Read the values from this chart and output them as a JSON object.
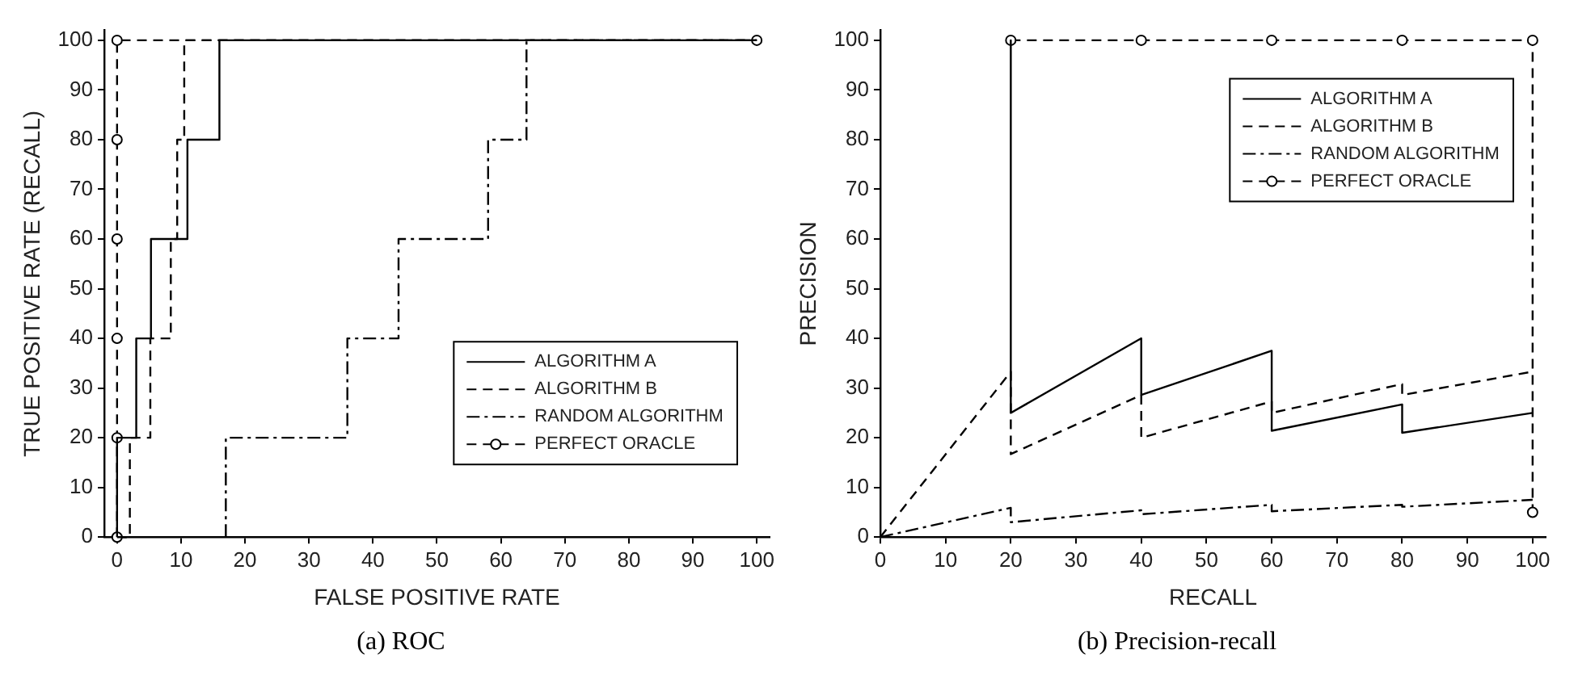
{
  "chart_data": [
    {
      "type": "line",
      "xlabel": "FALSE POSITIVE RATE",
      "ylabel": "TRUE POSITIVE RATE (RECALL)",
      "annotations": [
        "(a) ROC"
      ],
      "xlim": [
        -2,
        102
      ],
      "ylim": [
        0,
        102
      ],
      "xticks": [
        0,
        10,
        20,
        30,
        40,
        50,
        60,
        70,
        80,
        90,
        100
      ],
      "yticks": [
        0,
        10,
        20,
        30,
        40,
        50,
        60,
        70,
        80,
        90,
        100
      ],
      "grid": false,
      "legend": "bottom right",
      "series": [
        {
          "name": "ALGORITHM A",
          "color": "#000000",
          "line_style": "solid",
          "marker": "none",
          "x": [
            0,
            0,
            3,
            3,
            5.3,
            5.3,
            11,
            11,
            16,
            16,
            100
          ],
          "values": [
            0,
            20,
            20,
            40,
            40,
            60,
            60,
            80,
            80,
            100,
            100
          ]
        },
        {
          "name": "ALGORITHM B",
          "color": "#000000",
          "line_style": "dashed",
          "marker": "none",
          "x": [
            0,
            2,
            2,
            5.2,
            5.2,
            8.4,
            8.4,
            9.4,
            9.4,
            10.5,
            10.5,
            100
          ],
          "values": [
            0,
            0,
            20,
            20,
            40,
            40,
            60,
            60,
            80,
            80,
            100,
            100
          ]
        },
        {
          "name": "RANDOM ALGORITHM",
          "color": "#000000",
          "line_style": "dashdot",
          "marker": "none",
          "x": [
            17,
            17,
            36,
            36,
            44,
            44,
            58,
            58,
            64,
            64,
            100
          ],
          "values": [
            0,
            20,
            20,
            40,
            40,
            60,
            60,
            80,
            80,
            100,
            100
          ]
        },
        {
          "name": "PERFECT ORACLE",
          "color": "#000000",
          "line_style": "dashed",
          "marker": "circle",
          "x": [
            0,
            0,
            0,
            0,
            0,
            0,
            100
          ],
          "values": [
            0,
            20,
            40,
            60,
            80,
            100,
            100
          ]
        }
      ]
    },
    {
      "type": "line",
      "xlabel": "RECALL",
      "ylabel": "PRECISION",
      "annotations": [
        "(b) Precision-recall"
      ],
      "xlim": [
        0,
        102
      ],
      "ylim": [
        0,
        102
      ],
      "xticks": [
        0,
        10,
        20,
        30,
        40,
        50,
        60,
        70,
        80,
        90,
        100
      ],
      "yticks": [
        0,
        10,
        20,
        30,
        40,
        50,
        60,
        70,
        80,
        90,
        100
      ],
      "grid": false,
      "legend": "top right",
      "series": [
        {
          "name": "ALGORITHM A",
          "color": "#000000",
          "line_style": "solid",
          "marker": "none",
          "x": [
            20,
            20,
            40,
            40,
            60,
            60,
            80,
            80,
            100
          ],
          "values": [
            100,
            25,
            40,
            28.6,
            37.5,
            21.4,
            26.7,
            21,
            25
          ]
        },
        {
          "name": "ALGORITHM B",
          "color": "#000000",
          "line_style": "dashed",
          "marker": "none",
          "x": [
            0,
            20,
            20,
            40,
            40,
            60,
            60,
            80,
            80,
            100
          ],
          "values": [
            0,
            33.3,
            16.7,
            28.6,
            20,
            27.3,
            25,
            30.8,
            28.6,
            33.3
          ]
        },
        {
          "name": "RANDOM ALGORITHM",
          "color": "#000000",
          "line_style": "dashdot",
          "marker": "none",
          "x": [
            0,
            20,
            20,
            40,
            40,
            60,
            60,
            80,
            80,
            100
          ],
          "values": [
            0,
            5.9,
            3,
            5.4,
            4.6,
            6.5,
            5.2,
            6.5,
            6.1,
            7.5
          ]
        },
        {
          "name": "PERFECT ORACLE",
          "color": "#000000",
          "line_style": "dashed",
          "marker": "circle",
          "x": [
            20,
            40,
            60,
            80,
            100,
            100
          ],
          "values": [
            100,
            100,
            100,
            100,
            100,
            5
          ]
        }
      ]
    }
  ]
}
